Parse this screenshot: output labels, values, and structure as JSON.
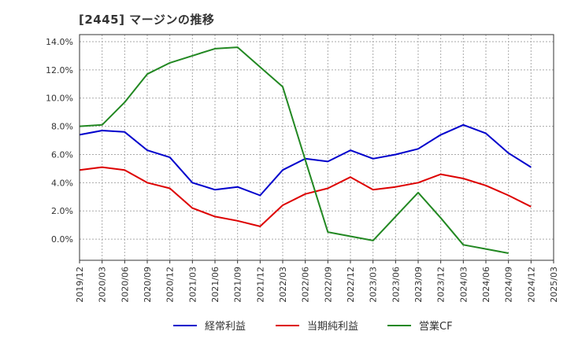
{
  "chart_data": {
    "type": "line",
    "title": "[2445]  マージンの推移",
    "x": [
      "2019/12",
      "2020/03",
      "2020/06",
      "2020/09",
      "2020/12",
      "2021/03",
      "2021/06",
      "2021/09",
      "2021/12",
      "2022/03",
      "2022/06",
      "2022/09",
      "2022/12",
      "2023/03",
      "2023/06",
      "2023/09",
      "2023/12",
      "2024/03",
      "2024/06",
      "2024/09",
      "2024/12",
      "2025/03"
    ],
    "ylim": [
      -1.5,
      14.5
    ],
    "yticks": [
      0,
      2,
      4,
      6,
      8,
      10,
      12,
      14
    ],
    "ytick_labels": [
      "0.0%",
      "2.0%",
      "4.0%",
      "6.0%",
      "8.0%",
      "10.0%",
      "12.0%",
      "14.0%"
    ],
    "grid": true,
    "legend_position": "bottom",
    "series": [
      {
        "name": "経常利益",
        "color": "#0000cc",
        "values": [
          7.4,
          7.7,
          7.6,
          6.3,
          5.8,
          4.0,
          3.5,
          3.7,
          3.1,
          4.9,
          5.7,
          5.5,
          6.3,
          5.7,
          6.0,
          6.4,
          7.4,
          8.1,
          7.5,
          6.1,
          5.1,
          null
        ]
      },
      {
        "name": "当期純利益",
        "color": "#dd0000",
        "values": [
          4.9,
          5.1,
          4.9,
          4.0,
          3.6,
          2.2,
          1.6,
          1.3,
          0.9,
          2.4,
          3.2,
          3.6,
          4.4,
          3.5,
          3.7,
          4.0,
          4.6,
          4.3,
          3.8,
          3.1,
          2.3,
          null
        ]
      },
      {
        "name": "営業CF",
        "color": "#228822",
        "values": [
          8.0,
          8.1,
          9.7,
          11.7,
          12.5,
          13.0,
          13.5,
          13.6,
          12.2,
          10.8,
          5.6,
          0.5,
          0.2,
          -0.1,
          1.6,
          3.3,
          1.5,
          -0.4,
          -0.7,
          -1.0,
          null,
          null
        ]
      }
    ]
  }
}
